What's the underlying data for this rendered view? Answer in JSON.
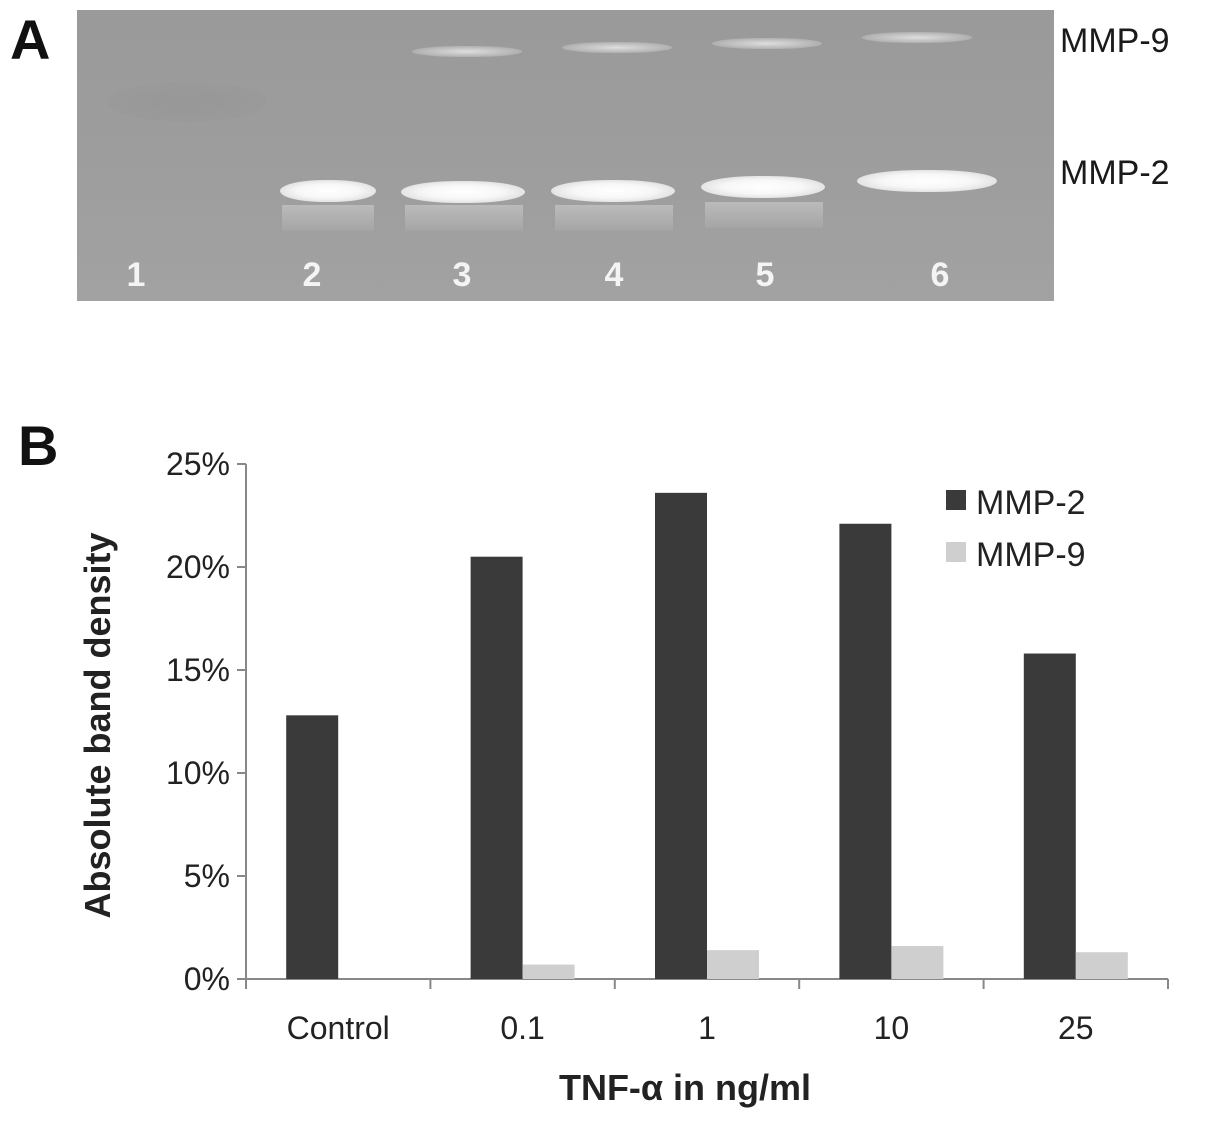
{
  "panel_a": {
    "letter": "A",
    "lane_numbers": [
      "1",
      "2",
      "3",
      "4",
      "5",
      "6"
    ],
    "band_labels": [
      "MMP-9",
      "MMP-2"
    ]
  },
  "panel_b": {
    "letter": "B"
  },
  "chart_data": {
    "type": "bar",
    "title": "",
    "xlabel": "TNF-α in ng/ml",
    "ylabel": "Absolute band density",
    "categories": [
      "Control",
      "0.1",
      "1",
      "10",
      "25"
    ],
    "series": [
      {
        "name": "MMP-2",
        "values": [
          12.8,
          20.5,
          23.6,
          22.1,
          15.8
        ],
        "color": "#3a3a3a"
      },
      {
        "name": "MMP-9",
        "values": [
          0,
          0.7,
          1.4,
          1.6,
          1.3
        ],
        "color": "#cfcfcf"
      }
    ],
    "ylim": [
      0,
      25
    ],
    "yticks": [
      "0%",
      "5%",
      "10%",
      "15%",
      "20%",
      "25%"
    ],
    "grid": false,
    "legend_position": "top-right"
  }
}
